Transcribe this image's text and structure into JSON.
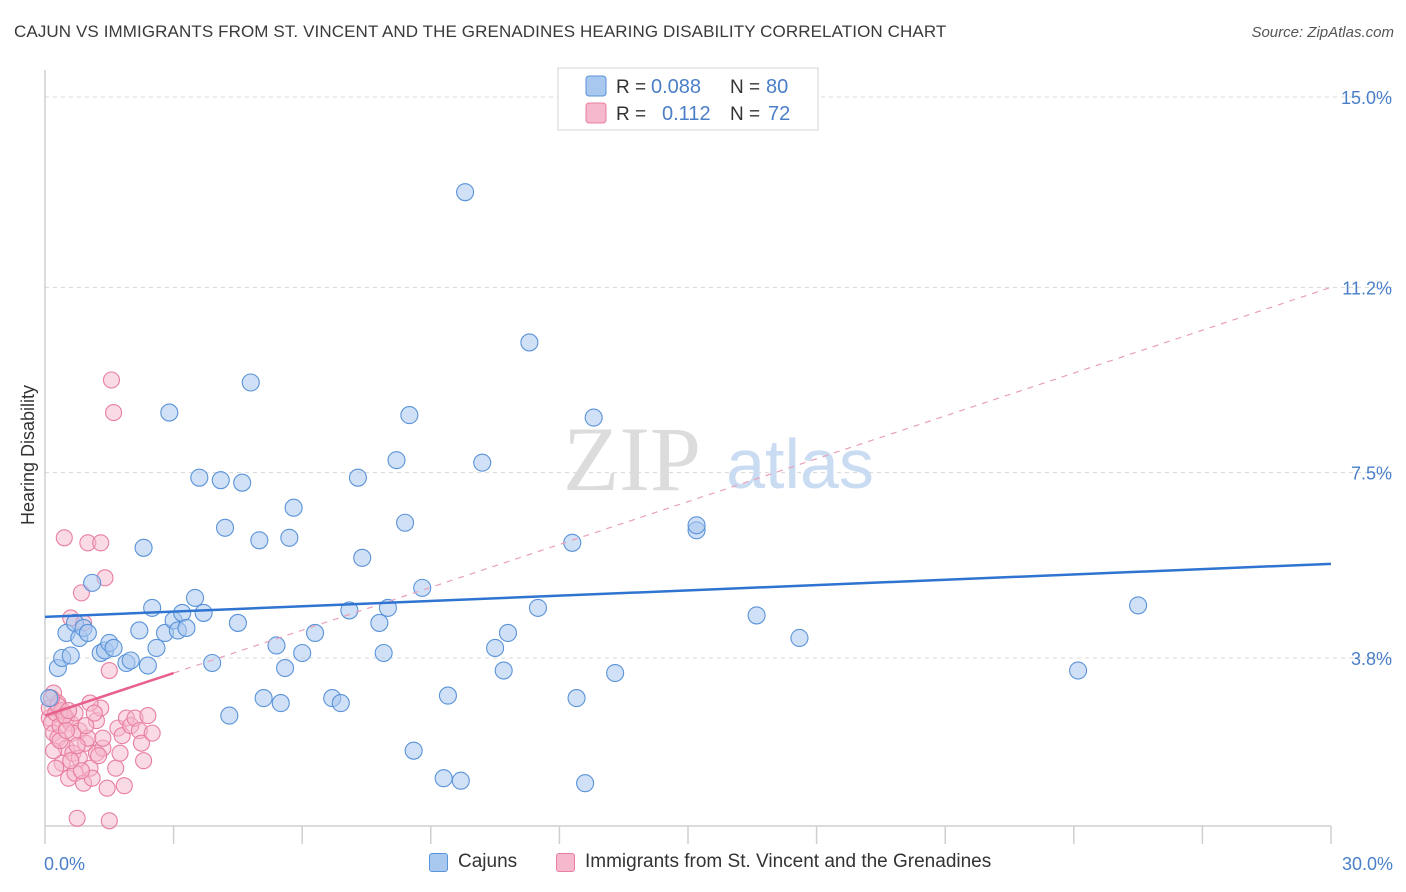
{
  "title": "CAJUN VS IMMIGRANTS FROM ST. VINCENT AND THE GRENADINES HEARING DISABILITY CORRELATION CHART",
  "source": "Source: ZipAtlas.com",
  "watermark": {
    "zip": "ZIP",
    "atlas": "atlas"
  },
  "colors": {
    "cajun_fill": "#a9c8f0",
    "cajun_stroke": "#5a93d8",
    "cajun_line": "#2f74d0",
    "svg_fill": "#f6b8cc",
    "svg_stroke": "#e87ea0",
    "svg_line": "#e8608c",
    "axis_value": "#4a7fc8",
    "grid": "#d8d8d8"
  },
  "legend_top": [
    {
      "r_label": "R =",
      "r_value": "0.088",
      "n_label": "N =",
      "n_value": "80"
    },
    {
      "r_label": "R =",
      "r_value": "0.112",
      "n_label": "N =",
      "n_value": "72"
    }
  ],
  "legend_bottom": [
    "Cajuns",
    "Immigrants from St. Vincent and the Grenadines"
  ],
  "chart_data": {
    "type": "scatter",
    "title": "CAJUN VS IMMIGRANTS FROM ST. VINCENT AND THE GRENADINES HEARING DISABILITY CORRELATION CHART",
    "xlabel": "",
    "ylabel": "Hearing Disability",
    "xlim": [
      0,
      30
    ],
    "ylim": [
      0,
      15.5
    ],
    "x_tick_labels": [
      "0.0%",
      "30.0%"
    ],
    "y_ticks": [
      3.8,
      7.5,
      11.2,
      15.0
    ],
    "y_tick_labels": [
      "3.8%",
      "7.5%",
      "11.2%",
      "15.0%"
    ],
    "grid": true,
    "legend_placement": "top-center",
    "series": [
      {
        "name": "Cajuns",
        "r": 0.088,
        "n": 80,
        "trend": {
          "x": [
            0,
            30
          ],
          "y": [
            4.62,
            5.68
          ],
          "style": "solid"
        },
        "points": [
          [
            0.1,
            3.0
          ],
          [
            0.3,
            3.6
          ],
          [
            0.4,
            3.8
          ],
          [
            0.5,
            4.3
          ],
          [
            0.6,
            3.85
          ],
          [
            0.7,
            4.5
          ],
          [
            0.8,
            4.2
          ],
          [
            0.9,
            4.4
          ],
          [
            1.0,
            4.3
          ],
          [
            1.1,
            5.3
          ],
          [
            1.3,
            3.9
          ],
          [
            1.4,
            3.95
          ],
          [
            1.5,
            4.1
          ],
          [
            1.6,
            4.0
          ],
          [
            1.9,
            3.7
          ],
          [
            2.0,
            3.75
          ],
          [
            2.2,
            4.35
          ],
          [
            2.3,
            6.0
          ],
          [
            2.4,
            3.65
          ],
          [
            2.5,
            4.8
          ],
          [
            2.6,
            4.0
          ],
          [
            2.8,
            4.3
          ],
          [
            2.9,
            8.7
          ],
          [
            3.0,
            4.55
          ],
          [
            3.1,
            4.35
          ],
          [
            3.2,
            4.7
          ],
          [
            3.3,
            4.4
          ],
          [
            3.5,
            5.0
          ],
          [
            3.6,
            7.4
          ],
          [
            3.7,
            4.7
          ],
          [
            3.9,
            3.7
          ],
          [
            4.1,
            7.35
          ],
          [
            4.2,
            6.4
          ],
          [
            4.3,
            2.65
          ],
          [
            4.5,
            4.5
          ],
          [
            4.6,
            7.3
          ],
          [
            4.8,
            9.3
          ],
          [
            5.0,
            6.15
          ],
          [
            5.1,
            3.0
          ],
          [
            5.4,
            4.05
          ],
          [
            5.5,
            2.9
          ],
          [
            5.6,
            3.6
          ],
          [
            5.7,
            6.2
          ],
          [
            5.8,
            6.8
          ],
          [
            6.0,
            3.9
          ],
          [
            6.3,
            4.3
          ],
          [
            6.7,
            3.0
          ],
          [
            6.9,
            2.9
          ],
          [
            7.1,
            4.75
          ],
          [
            7.3,
            7.4
          ],
          [
            7.4,
            5.8
          ],
          [
            7.8,
            4.5
          ],
          [
            7.9,
            3.9
          ],
          [
            8.0,
            4.8
          ],
          [
            8.2,
            7.75
          ],
          [
            8.4,
            6.5
          ],
          [
            8.5,
            8.65
          ],
          [
            8.6,
            1.95
          ],
          [
            8.8,
            5.2
          ],
          [
            9.3,
            1.4
          ],
          [
            9.4,
            3.05
          ],
          [
            9.7,
            1.35
          ],
          [
            9.8,
            13.1
          ],
          [
            10.2,
            7.7
          ],
          [
            10.5,
            4.0
          ],
          [
            10.7,
            3.55
          ],
          [
            10.8,
            4.3
          ],
          [
            11.3,
            10.1
          ],
          [
            11.5,
            4.8
          ],
          [
            12.3,
            6.1
          ],
          [
            12.4,
            3.0
          ],
          [
            12.6,
            1.3
          ],
          [
            12.8,
            8.6
          ],
          [
            13.3,
            3.5
          ],
          [
            15.2,
            6.35
          ],
          [
            15.2,
            6.45
          ],
          [
            16.6,
            4.65
          ],
          [
            17.6,
            4.2
          ],
          [
            24.1,
            3.55
          ],
          [
            25.5,
            4.85
          ]
        ]
      },
      {
        "name": "Immigrants from St. Vincent and the Grenadines",
        "r": 0.112,
        "n": 72,
        "trend": {
          "x": [
            0,
            3.0
          ],
          "y": [
            2.65,
            3.5
          ],
          "style": "solid",
          "dashed_extension": {
            "x": [
              3.0,
              30
            ],
            "y": [
              3.5,
              11.2
            ]
          }
        },
        "points": [
          [
            0.1,
            2.6
          ],
          [
            0.1,
            2.8
          ],
          [
            0.15,
            2.5
          ],
          [
            0.2,
            3.1
          ],
          [
            0.2,
            2.3
          ],
          [
            0.25,
            2.7
          ],
          [
            0.3,
            2.9
          ],
          [
            0.3,
            2.2
          ],
          [
            0.35,
            2.45
          ],
          [
            0.4,
            2.75
          ],
          [
            0.4,
            1.7
          ],
          [
            0.45,
            6.2
          ],
          [
            0.5,
            2.6
          ],
          [
            0.5,
            2.0
          ],
          [
            0.55,
            1.4
          ],
          [
            0.6,
            2.5
          ],
          [
            0.6,
            4.6
          ],
          [
            0.65,
            1.9
          ],
          [
            0.7,
            2.7
          ],
          [
            0.7,
            1.5
          ],
          [
            0.75,
            0.6
          ],
          [
            0.8,
            2.35
          ],
          [
            0.8,
            1.8
          ],
          [
            0.85,
            5.1
          ],
          [
            0.9,
            4.5
          ],
          [
            0.9,
            1.3
          ],
          [
            0.95,
            2.1
          ],
          [
            1.0,
            6.1
          ],
          [
            1.0,
            2.2
          ],
          [
            1.05,
            1.6
          ],
          [
            1.1,
            1.4
          ],
          [
            1.2,
            2.55
          ],
          [
            1.2,
            1.9
          ],
          [
            1.3,
            2.8
          ],
          [
            1.3,
            6.1
          ],
          [
            1.35,
            2.0
          ],
          [
            1.4,
            5.4
          ],
          [
            1.45,
            1.2
          ],
          [
            1.5,
            0.55
          ],
          [
            1.5,
            3.55
          ],
          [
            1.55,
            9.35
          ],
          [
            1.6,
            8.7
          ],
          [
            1.65,
            1.6
          ],
          [
            1.7,
            2.4
          ],
          [
            1.75,
            1.9
          ],
          [
            1.8,
            2.25
          ],
          [
            1.85,
            1.25
          ],
          [
            1.9,
            2.6
          ],
          [
            2.0,
            2.45
          ],
          [
            2.1,
            2.6
          ],
          [
            2.2,
            2.35
          ],
          [
            2.25,
            2.1
          ],
          [
            2.3,
            1.75
          ],
          [
            2.4,
            2.65
          ],
          [
            2.5,
            2.3
          ],
          [
            0.2,
            1.95
          ],
          [
            0.3,
            2.85
          ],
          [
            0.35,
            2.15
          ],
          [
            0.45,
            2.65
          ],
          [
            0.55,
            2.75
          ],
          [
            0.65,
            2.3
          ],
          [
            0.75,
            2.05
          ],
          [
            0.85,
            1.55
          ],
          [
            0.95,
            2.45
          ],
          [
            1.05,
            2.9
          ],
          [
            1.15,
            2.7
          ],
          [
            1.25,
            1.85
          ],
          [
            1.35,
            2.2
          ],
          [
            0.15,
            3.0
          ],
          [
            0.25,
            1.6
          ],
          [
            0.5,
            2.35
          ],
          [
            0.6,
            1.75
          ]
        ]
      }
    ]
  }
}
